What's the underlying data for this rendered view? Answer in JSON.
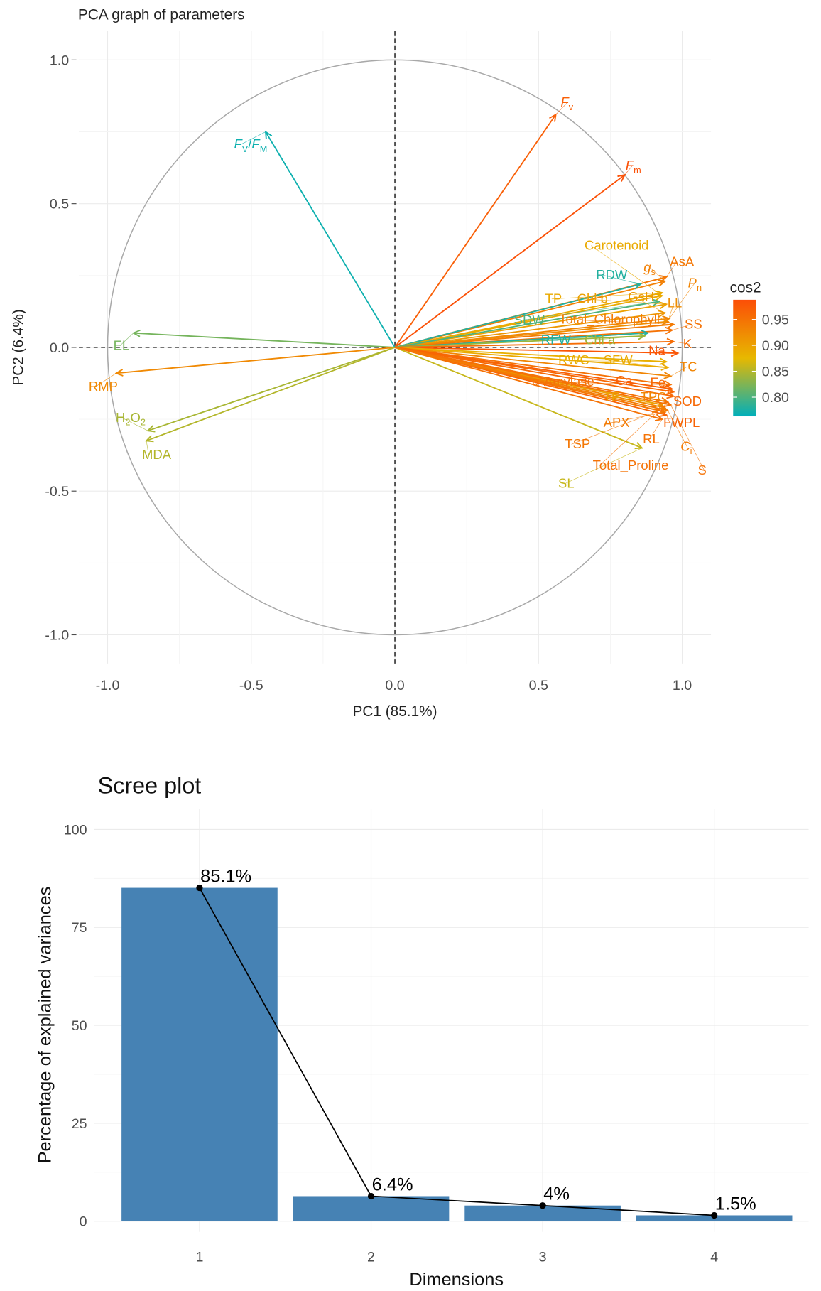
{
  "chart_data": [
    {
      "type": "pca-variable-correlation",
      "title": "PCA graph of parameters",
      "xlabel": "PC1 (85.1%)",
      "ylabel": "PC2 (6.4%)",
      "xlim": [
        -1.1,
        1.1
      ],
      "ylim": [
        -1.1,
        1.1
      ],
      "xticks": [
        "-1.0",
        "-0.5",
        "0.0",
        "0.5",
        "1.0"
      ],
      "xtick_values": [
        -1,
        -0.5,
        0,
        0.5,
        1
      ],
      "yticks": [
        "1.0",
        "0.5",
        "0.0",
        "-0.5",
        "-1.0"
      ],
      "ytick_values": [
        1,
        0.5,
        0,
        -0.5,
        -1
      ],
      "grid": true,
      "unit_circle": true,
      "legend": {
        "title": "cos2",
        "ticks": [
          "0.95",
          "0.90",
          "0.85",
          "0.80"
        ],
        "tick_values": [
          0.95,
          0.9,
          0.85,
          0.8
        ],
        "range": [
          0.763,
          0.988
        ],
        "colors": [
          "#00AFBB",
          "#E7B800",
          "#FC4E07"
        ],
        "placement": "right"
      },
      "variables": [
        {
          "name": "Fv",
          "x": 0.56,
          "y": 0.81,
          "cos2": 0.97
        },
        {
          "name": "Fm",
          "x": 0.8,
          "y": 0.6,
          "cos2": 0.985
        },
        {
          "name": "FV/FM",
          "x": -0.45,
          "y": 0.75,
          "cos2": 0.77
        },
        {
          "name": "EL",
          "x": -0.91,
          "y": 0.05,
          "cos2": 0.82
        },
        {
          "name": "RMP",
          "x": -0.97,
          "y": -0.09,
          "cos2": 0.925
        },
        {
          "name": "H2O2",
          "x": -0.86,
          "y": -0.29,
          "cos2": 0.845
        },
        {
          "name": "MDA",
          "x": -0.865,
          "y": -0.325,
          "cos2": 0.85
        },
        {
          "name": "Carotenoid",
          "x": 0.93,
          "y": 0.18,
          "cos2": 0.89
        },
        {
          "name": "AsA",
          "x": 0.945,
          "y": 0.245,
          "cos2": 0.945
        },
        {
          "name": "gs",
          "x": 0.94,
          "y": 0.23,
          "cos2": 0.935
        },
        {
          "name": "RDW",
          "x": 0.855,
          "y": 0.22,
          "cos2": 0.78
        },
        {
          "name": "Pn",
          "x": 0.955,
          "y": 0.1,
          "cos2": 0.93
        },
        {
          "name": "TP",
          "x": 0.93,
          "y": 0.19,
          "cos2": 0.89
        },
        {
          "name": "Chl b",
          "x": 0.945,
          "y": 0.15,
          "cos2": 0.9
        },
        {
          "name": "GsH",
          "x": 0.94,
          "y": 0.12,
          "cos2": 0.91
        },
        {
          "name": "LL",
          "x": 0.95,
          "y": 0.09,
          "cos2": 0.92
        },
        {
          "name": "SDW",
          "x": 0.92,
          "y": 0.16,
          "cos2": 0.8
        },
        {
          "name": "Total_Chlorophyll",
          "x": 0.97,
          "y": 0.08,
          "cos2": 0.94
        },
        {
          "name": "SS",
          "x": 0.965,
          "y": 0.06,
          "cos2": 0.95
        },
        {
          "name": "RFW",
          "x": 0.88,
          "y": 0.05,
          "cos2": 0.78
        },
        {
          "name": "Chl a",
          "x": 0.87,
          "y": 0.04,
          "cos2": 0.84
        },
        {
          "name": "K",
          "x": 0.97,
          "y": 0.02,
          "cos2": 0.955
        },
        {
          "name": "Na",
          "x": 0.985,
          "y": -0.02,
          "cos2": 0.98
        },
        {
          "name": "RWC",
          "x": 0.945,
          "y": -0.05,
          "cos2": 0.885
        },
        {
          "name": "SFW",
          "x": 0.95,
          "y": -0.07,
          "cos2": 0.89
        },
        {
          "name": "TC",
          "x": 0.96,
          "y": -0.1,
          "cos2": 0.93
        },
        {
          "name": "α-Amylase",
          "x": 0.96,
          "y": -0.13,
          "cos2": 0.95
        },
        {
          "name": "Ca",
          "x": 0.965,
          "y": -0.145,
          "cos2": 0.97
        },
        {
          "name": "Fe",
          "x": 0.97,
          "y": -0.155,
          "cos2": 0.96
        },
        {
          "name": "SOD",
          "x": 0.97,
          "y": -0.17,
          "cos2": 0.96
        },
        {
          "name": "TF",
          "x": 0.93,
          "y": -0.2,
          "cos2": 0.9
        },
        {
          "name": "TPC",
          "x": 0.94,
          "y": -0.21,
          "cos2": 0.93
        },
        {
          "name": "APX",
          "x": 0.94,
          "y": -0.225,
          "cos2": 0.94
        },
        {
          "name": "FWPL",
          "x": 0.945,
          "y": -0.235,
          "cos2": 0.965
        },
        {
          "name": "TSP",
          "x": 0.92,
          "y": -0.22,
          "cos2": 0.945
        },
        {
          "name": "RL",
          "x": 0.93,
          "y": -0.25,
          "cos2": 0.95
        },
        {
          "name": "Ci",
          "x": 0.95,
          "y": -0.22,
          "cos2": 0.94
        },
        {
          "name": "SL",
          "x": 0.86,
          "y": -0.35,
          "cos2": 0.86
        },
        {
          "name": "Total_Proline",
          "x": 0.95,
          "y": -0.19,
          "cos2": 0.95
        },
        {
          "name": "S",
          "x": 0.96,
          "y": -0.2,
          "cos2": 0.95
        }
      ]
    },
    {
      "type": "bar",
      "title": "Scree plot",
      "xlabel": "Dimensions",
      "ylabel": "Percentage of explained variances",
      "categories": [
        "1",
        "2",
        "3",
        "4"
      ],
      "values": [
        85.1,
        6.4,
        4.0,
        1.5
      ],
      "data_labels": [
        "85.1%",
        "6.4%",
        "4%",
        "1.5%"
      ],
      "ylim": [
        0,
        105
      ],
      "yticks": [
        "0",
        "25",
        "50",
        "75",
        "100"
      ],
      "ytick_values": [
        0,
        25,
        50,
        75,
        100
      ],
      "bar_color": "#4682B4",
      "line_color": "#000000",
      "grid": true
    }
  ]
}
